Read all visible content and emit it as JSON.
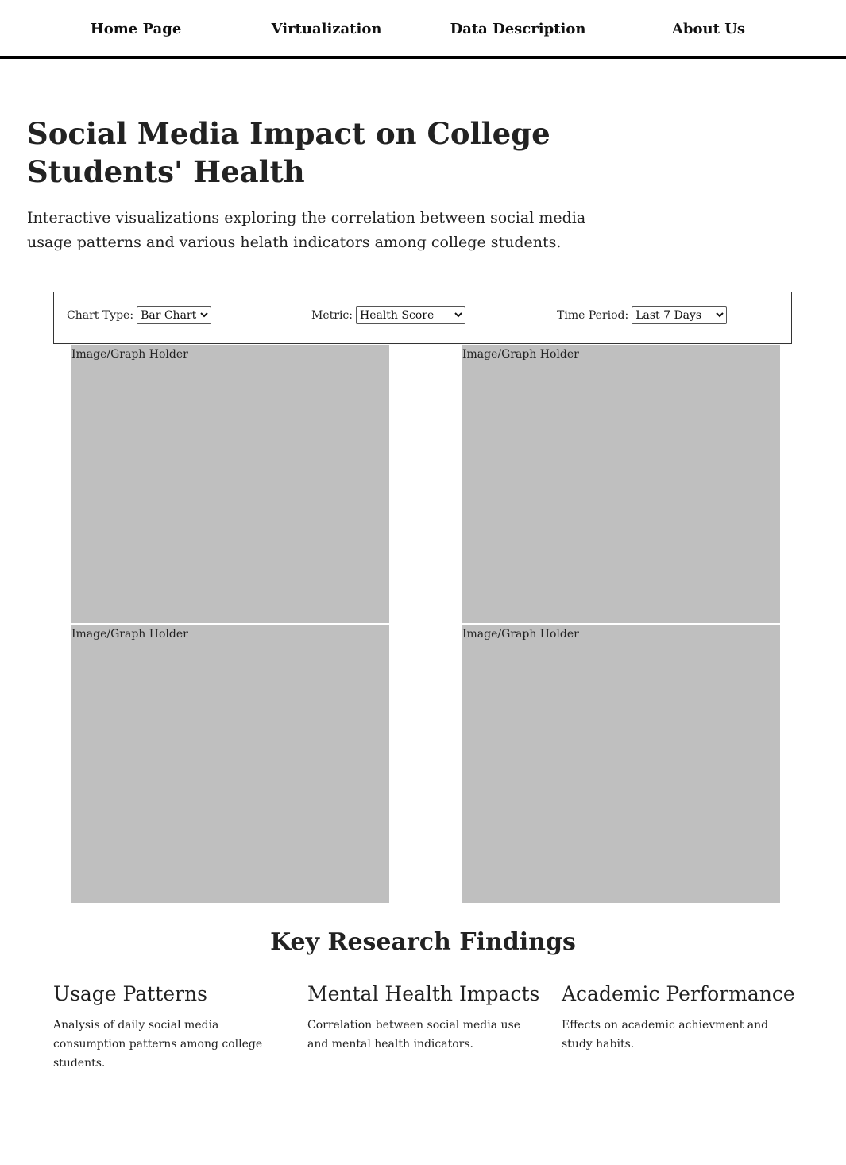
{
  "nav": {
    "items": [
      {
        "label": "Home Page"
      },
      {
        "label": "Virtualization"
      },
      {
        "label": "Data Description"
      },
      {
        "label": "About Us"
      }
    ]
  },
  "hero": {
    "title": "Social Media Impact on College Students' Health",
    "subtitle": "Interactive visualizations exploring the correlation between social media usage patterns and various helath indicators among college students."
  },
  "controls": {
    "chart_type": {
      "label": "Chart Type:",
      "selected": "Bar Chart"
    },
    "metric": {
      "label": "Metric:",
      "selected": "Health Score"
    },
    "time_period": {
      "label": "Time Period:",
      "selected": "Last 7 Days"
    }
  },
  "holders": [
    {
      "label": "Image/Graph Holder"
    },
    {
      "label": "Image/Graph Holder"
    },
    {
      "label": "Image/Graph Holder"
    },
    {
      "label": "Image/Graph Holder"
    }
  ],
  "findings": {
    "title": "Key Research Findings",
    "items": [
      {
        "heading": "Usage Patterns",
        "text": "Analysis of daily social media consumption patterns among college students."
      },
      {
        "heading": "Mental Health Impacts",
        "text": "Correlation between social media use and mental health indicators."
      },
      {
        "heading": "Academic Performance",
        "text": "Effects on academic achievment and study habits."
      }
    ]
  },
  "colors": {
    "holder_bg": "#bfbfbf",
    "nav_border": "#000000",
    "text": "#222222"
  }
}
